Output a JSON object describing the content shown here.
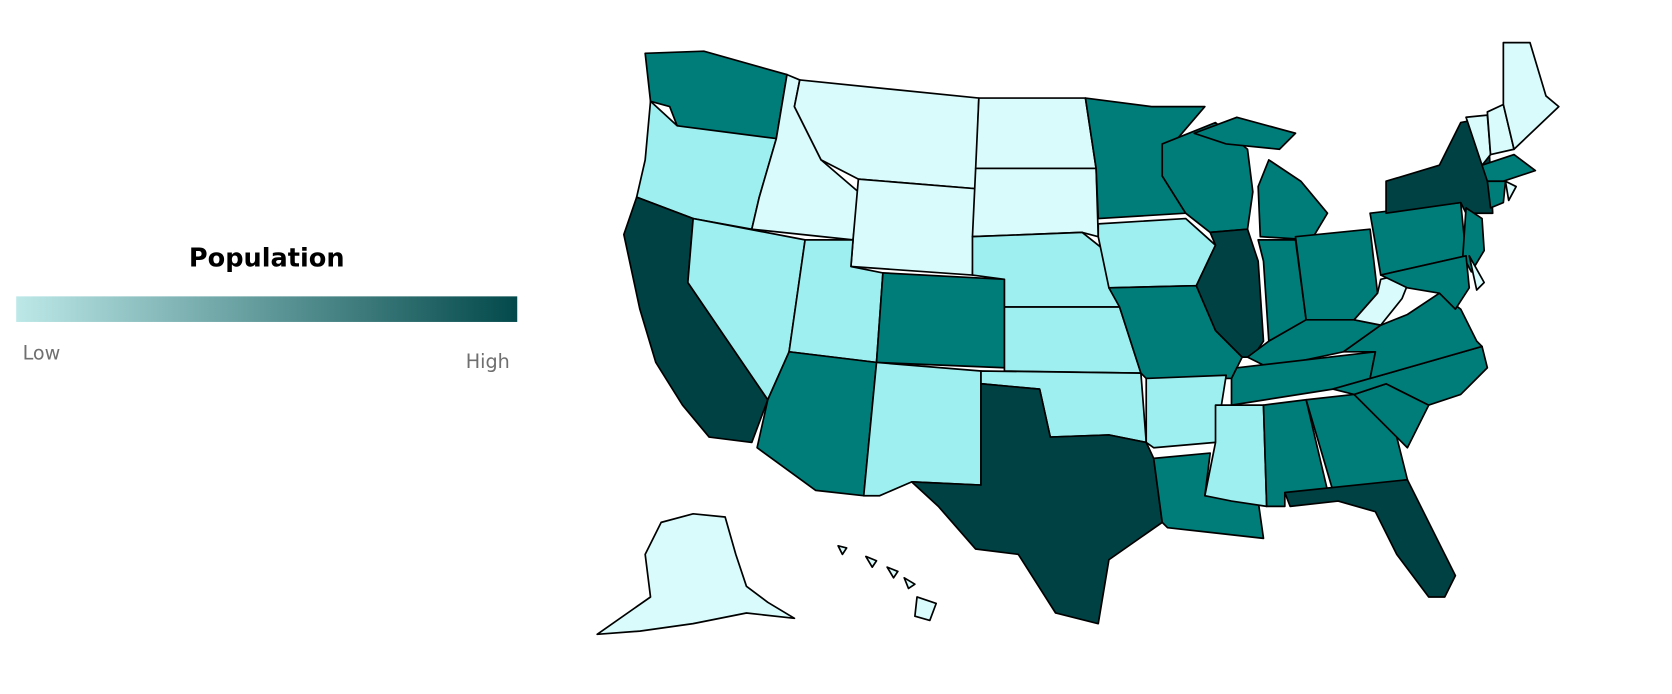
{
  "legend": {
    "title": "Population",
    "low_label": "Low",
    "high_label": "High",
    "gradient_start": "#bde8e8",
    "gradient_end": "#03494b"
  },
  "color_scale": {
    "lowest": "#d9fbfb",
    "low": "#9ef0f0",
    "mid": "#007d79",
    "high": "#004144"
  },
  "map": {
    "levels": {
      "WA": "mid",
      "OR": "low",
      "CA": "high",
      "NV": "low",
      "ID": "lowest",
      "MT": "lowest",
      "WY": "lowest",
      "UT": "low",
      "CO": "mid",
      "AZ": "mid",
      "NM": "low",
      "ND": "lowest",
      "SD": "lowest",
      "NE": "low",
      "KS": "low",
      "OK": "low",
      "TX": "high",
      "MN": "mid",
      "IA": "low",
      "MO": "mid",
      "AR": "low",
      "LA": "mid",
      "WI": "mid",
      "IL": "high",
      "MI": "mid",
      "IN": "mid",
      "OH": "mid",
      "KY": "mid",
      "TN": "mid",
      "MS": "low",
      "AL": "mid",
      "GA": "mid",
      "FL": "high",
      "SC": "mid",
      "NC": "mid",
      "VA": "mid",
      "WV": "lowest",
      "PA": "mid",
      "NY": "high",
      "NJ": "mid",
      "MD": "mid",
      "DE": "lowest",
      "VT": "lowest",
      "NH": "lowest",
      "ME": "lowest",
      "MA": "mid",
      "CT": "mid",
      "RI": "lowest",
      "AK": "lowest",
      "HI": "lowest"
    }
  }
}
